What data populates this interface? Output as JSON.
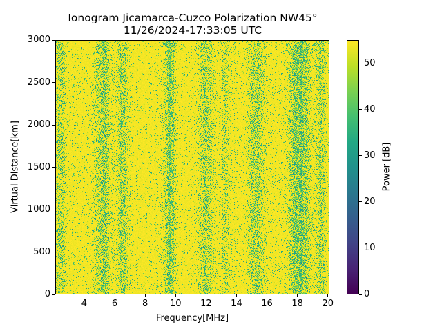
{
  "chart_data": {
    "type": "heatmap",
    "title": "Ionogram Jicamarca-Cuzco Polarization NW45°",
    "subtitle": "11/26/2024-17:33:05 UTC",
    "xlabel": "Frequency[MHz]",
    "ylabel": "Virtual Distance[km]",
    "colorbar_label": "Power [dB]",
    "colormap": "viridis",
    "xlim": [
      2.1,
      20.1
    ],
    "ylim": [
      0,
      3000
    ],
    "clim": [
      0,
      55
    ],
    "x_ticks": [
      4,
      6,
      8,
      10,
      12,
      14,
      16,
      18,
      20
    ],
    "y_ticks": [
      0,
      500,
      1000,
      1500,
      2000,
      2500,
      3000
    ],
    "colorbar_ticks": [
      0,
      10,
      20,
      30,
      40,
      50
    ],
    "grid": false,
    "description": "Noise-dominated ionogram: mostly saturated (~55 dB, yellow) with vertical bands of lower power (green/teal, ~35-45 dB) spanning all virtual distances.",
    "bands": [
      {
        "center_mhz": 2.4,
        "width_mhz": 0.6,
        "depth": 0.35
      },
      {
        "center_mhz": 5.2,
        "width_mhz": 0.9,
        "depth": 0.55
      },
      {
        "center_mhz": 6.5,
        "width_mhz": 0.7,
        "depth": 0.4
      },
      {
        "center_mhz": 9.6,
        "width_mhz": 0.7,
        "depth": 0.65
      },
      {
        "center_mhz": 12.0,
        "width_mhz": 0.9,
        "depth": 0.4
      },
      {
        "center_mhz": 13.3,
        "width_mhz": 0.6,
        "depth": 0.25
      },
      {
        "center_mhz": 15.3,
        "width_mhz": 0.9,
        "depth": 0.45
      },
      {
        "center_mhz": 18.2,
        "width_mhz": 1.2,
        "depth": 0.75
      },
      {
        "center_mhz": 19.6,
        "width_mhz": 0.6,
        "depth": 0.45
      }
    ]
  }
}
